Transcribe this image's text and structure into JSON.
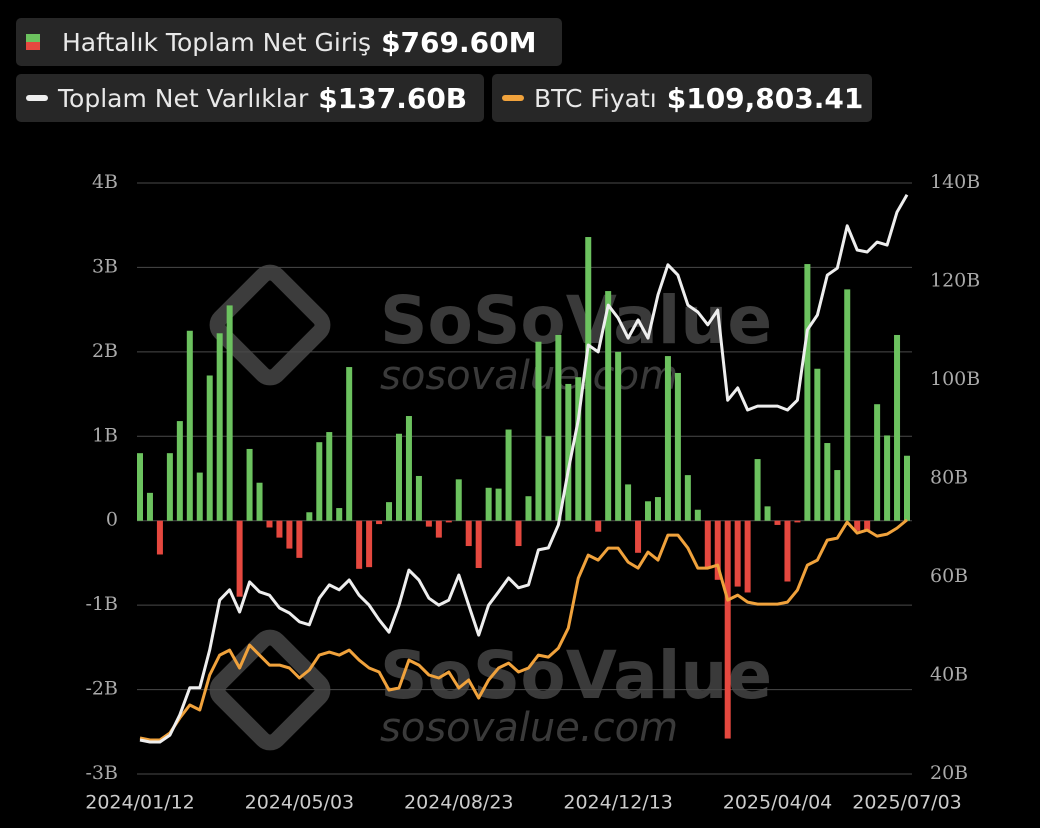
{
  "chart_data": {
    "type": "bar_line",
    "watermark": "SoSoValue",
    "watermark_url": "sosovalue.com",
    "categories": [
      "2024/01/12",
      null,
      null,
      null,
      null,
      null,
      null,
      null,
      null,
      null,
      null,
      null,
      null,
      null,
      null,
      null,
      "2024/05/03",
      null,
      null,
      null,
      null,
      null,
      null,
      null,
      null,
      null,
      null,
      null,
      null,
      null,
      null,
      null,
      "2024/08/23",
      null,
      null,
      null,
      null,
      null,
      null,
      null,
      null,
      null,
      null,
      null,
      null,
      null,
      null,
      null,
      "2024/12/13",
      null,
      null,
      null,
      null,
      null,
      null,
      null,
      null,
      null,
      null,
      null,
      null,
      null,
      null,
      null,
      "2025/04/04",
      null,
      null,
      null,
      null,
      null,
      null,
      null,
      null,
      null,
      null,
      null,
      null,
      "2025/07/03"
    ],
    "ylim": [
      -3,
      4
    ],
    "yticks": [
      {
        "value": -3,
        "label": "-3B"
      },
      {
        "value": -2,
        "label": "-2B"
      },
      {
        "value": -1,
        "label": "-1B"
      },
      0,
      {
        "value": 1,
        "label": "1B"
      },
      {
        "value": 2,
        "label": "2B"
      },
      {
        "value": 3,
        "label": "3B"
      },
      {
        "value": 4,
        "label": "4B"
      }
    ],
    "y2lim": [
      20,
      140
    ],
    "y2ticks": [
      {
        "value": 20,
        "label": "20B"
      },
      {
        "value": 40,
        "label": "40B"
      },
      {
        "value": 60,
        "label": "60B"
      },
      {
        "value": 80,
        "label": "80B"
      },
      {
        "value": 100,
        "label": "100B"
      },
      {
        "value": 120,
        "label": "120B"
      },
      {
        "value": 140,
        "label": "140B"
      }
    ],
    "y3lim": [
      31750,
      213260
    ],
    "grid": true,
    "series": [
      {
        "name": "Haftalık Toplam Net Giriş",
        "current_label": "$769.60M",
        "kind": "bar",
        "color": "#6cc25f",
        "negative_color": "#e5483f",
        "values": [
          0.8,
          0.33,
          -0.4,
          0.8,
          1.18,
          2.25,
          0.57,
          1.72,
          2.22,
          2.55,
          -0.9,
          0.85,
          0.45,
          -0.08,
          -0.2,
          -0.33,
          -0.44,
          0.1,
          0.93,
          1.05,
          0.15,
          1.82,
          -0.57,
          -0.55,
          -0.04,
          0.22,
          1.03,
          1.24,
          0.53,
          -0.07,
          -0.2,
          -0.02,
          0.49,
          -0.3,
          -0.56,
          0.39,
          0.38,
          1.08,
          -0.3,
          0.29,
          2.12,
          1.0,
          2.2,
          1.62,
          1.7,
          3.36,
          -0.13,
          2.72,
          2.0,
          0.43,
          -0.38,
          0.23,
          0.28,
          1.95,
          1.75,
          0.54,
          0.13,
          -0.55,
          -0.7,
          -2.58,
          -0.78,
          -0.85,
          0.73,
          0.17,
          -0.05,
          -0.72,
          -0.02,
          3.04,
          1.8,
          0.92,
          0.6,
          2.74,
          -0.12,
          -0.12,
          1.38,
          1.01,
          2.2,
          0.7696
        ]
      },
      {
        "name": "Toplam Net Varlıklar",
        "current_label": "$137.60B",
        "kind": "line",
        "axis": "y2",
        "color": "#eeeeee",
        "values": [
          26.9,
          26.5,
          26.5,
          27.9,
          32,
          37.5,
          37.5,
          45.2,
          55.3,
          57.4,
          52.9,
          59,
          57,
          56.3,
          53.7,
          52.7,
          50.9,
          50.3,
          55.7,
          58.4,
          57.4,
          59.4,
          56.3,
          54.3,
          51.3,
          48.8,
          54.3,
          61.4,
          59.4,
          55.7,
          54.3,
          55.3,
          60.4,
          54.3,
          48.2,
          54.3,
          57,
          59.8,
          57.8,
          58.4,
          65.5,
          65.9,
          70.6,
          81.7,
          91.9,
          107.1,
          105.7,
          115.2,
          112.6,
          108.5,
          112.2,
          108.5,
          117.3,
          123.4,
          121.3,
          115.2,
          113.8,
          111.2,
          114.2,
          95.9,
          98.4,
          93.9,
          94.7,
          94.7,
          94.7,
          93.9,
          95.9,
          110.2,
          113.2,
          121.3,
          122.7,
          131.3,
          126.4,
          126,
          128,
          127.4,
          134.1,
          137.6
        ]
      },
      {
        "name": "BTC Fiyatı",
        "current_label": "$109,803.41",
        "kind": "line",
        "axis": "y3",
        "color": "#f0a23c",
        "values": [
          42800,
          42186,
          42186,
          44335,
          48940,
          52931,
          51396,
          62141,
          68281,
          69816,
          64290,
          71351,
          68281,
          65211,
          65211,
          64290,
          61220,
          63676,
          68281,
          69202,
          68281,
          69816,
          66746,
          64290,
          63062,
          57536,
          58150,
          66746,
          65211,
          62141,
          61220,
          63062,
          58150,
          60606,
          55080,
          60606,
          64290,
          65825,
          63062,
          64290,
          68281,
          67667,
          70430,
          76570,
          91920,
          98981,
          97446,
          101130,
          101130,
          96832,
          94990,
          99902,
          97446,
          105121,
          105121,
          101130,
          94990,
          94990,
          95911,
          85166,
          86701,
          84552,
          83938,
          83938,
          83938,
          84552,
          88236,
          95911,
          97446,
          103586,
          104200,
          109112,
          105735,
          106656,
          104814,
          105428,
          107270,
          109803.41
        ]
      }
    ]
  }
}
